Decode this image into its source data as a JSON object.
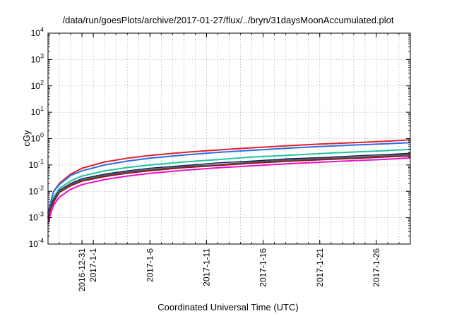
{
  "chart_data": {
    "type": "line",
    "title": "/data/run/goesPlots/archive/2017-01-27/flux/../bryn/31daysMoonAccumulated.plot",
    "xlabel": "Coordinated Universal Time (UTC)",
    "ylabel": "cGy",
    "yscale": "log",
    "ylim": [
      0.0001,
      10000
    ],
    "xlim": [
      "2016-12-28",
      "2017-01-29"
    ],
    "grid": true,
    "y_ticks": [
      {
        "value": 0.0001,
        "base": "10",
        "exp": "-4"
      },
      {
        "value": 0.001,
        "base": "10",
        "exp": "-3"
      },
      {
        "value": 0.01,
        "base": "10",
        "exp": "-2"
      },
      {
        "value": 0.1,
        "base": "10",
        "exp": "-1"
      },
      {
        "value": 1,
        "base": "10",
        "exp": "0"
      },
      {
        "value": 10,
        "base": "10",
        "exp": "1"
      },
      {
        "value": 100,
        "base": "10",
        "exp": "2"
      },
      {
        "value": 1000,
        "base": "10",
        "exp": "3"
      },
      {
        "value": 10000,
        "base": "10",
        "exp": "4"
      }
    ],
    "x_ticks": [
      {
        "date": "2016-12-31",
        "label": "2016-12-31"
      },
      {
        "date": "2017-01-01",
        "label": "2017-1-1"
      },
      {
        "date": "2017-01-06",
        "label": "2017-1-6"
      },
      {
        "date": "2017-01-11",
        "label": "2017-1-11"
      },
      {
        "date": "2017-01-16",
        "label": "2017-1-16"
      },
      {
        "date": "2017-01-21",
        "label": "2017-1-21"
      },
      {
        "date": "2017-01-26",
        "label": "2017-1-26"
      }
    ],
    "x": [
      "2016-12-28",
      "2016-12-28T06:00",
      "2016-12-28T12:00",
      "2016-12-29",
      "2016-12-30",
      "2016-12-31",
      "2017-01-02",
      "2017-01-04",
      "2017-01-06",
      "2017-01-09",
      "2017-01-12",
      "2017-01-15",
      "2017-01-18",
      "2017-01-21",
      "2017-01-24",
      "2017-01-27",
      "2017-01-29"
    ],
    "series": [
      {
        "color": "#e0202a",
        "width": 2,
        "values": [
          0.0015,
          0.004,
          0.01,
          0.02,
          0.045,
          0.075,
          0.13,
          0.18,
          0.23,
          0.3,
          0.37,
          0.45,
          0.53,
          0.62,
          0.7,
          0.8,
          0.9
        ]
      },
      {
        "color": "#2a6ee6",
        "width": 2,
        "values": [
          0.0015,
          0.004,
          0.01,
          0.018,
          0.04,
          0.06,
          0.1,
          0.14,
          0.18,
          0.24,
          0.3,
          0.36,
          0.43,
          0.5,
          0.57,
          0.64,
          0.7
        ]
      },
      {
        "color": "#22c4a0",
        "width": 2,
        "values": [
          0.0012,
          0.003,
          0.006,
          0.013,
          0.025,
          0.038,
          0.06,
          0.08,
          0.1,
          0.13,
          0.16,
          0.2,
          0.23,
          0.27,
          0.31,
          0.35,
          0.39
        ]
      },
      {
        "color": "#1a1f5c",
        "width": 1.5,
        "values": [
          0.0012,
          0.003,
          0.005,
          0.011,
          0.02,
          0.03,
          0.045,
          0.06,
          0.075,
          0.095,
          0.12,
          0.14,
          0.17,
          0.19,
          0.22,
          0.25,
          0.28
        ]
      },
      {
        "color": "#555555",
        "width": 2.5,
        "values": [
          0.001,
          0.0025,
          0.004,
          0.01,
          0.018,
          0.026,
          0.04,
          0.053,
          0.065,
          0.085,
          0.1,
          0.125,
          0.15,
          0.17,
          0.19,
          0.22,
          0.25
        ]
      },
      {
        "color": "#8a1418",
        "width": 1.5,
        "values": [
          0.0009,
          0.0022,
          0.0038,
          0.009,
          0.016,
          0.024,
          0.036,
          0.048,
          0.06,
          0.078,
          0.095,
          0.115,
          0.135,
          0.155,
          0.175,
          0.2,
          0.22
        ]
      },
      {
        "color": "#ee10cc",
        "width": 2,
        "values": [
          0.0006,
          0.0015,
          0.003,
          0.006,
          0.012,
          0.018,
          0.028,
          0.038,
          0.048,
          0.063,
          0.078,
          0.093,
          0.11,
          0.127,
          0.145,
          0.165,
          0.185
        ]
      }
    ]
  }
}
